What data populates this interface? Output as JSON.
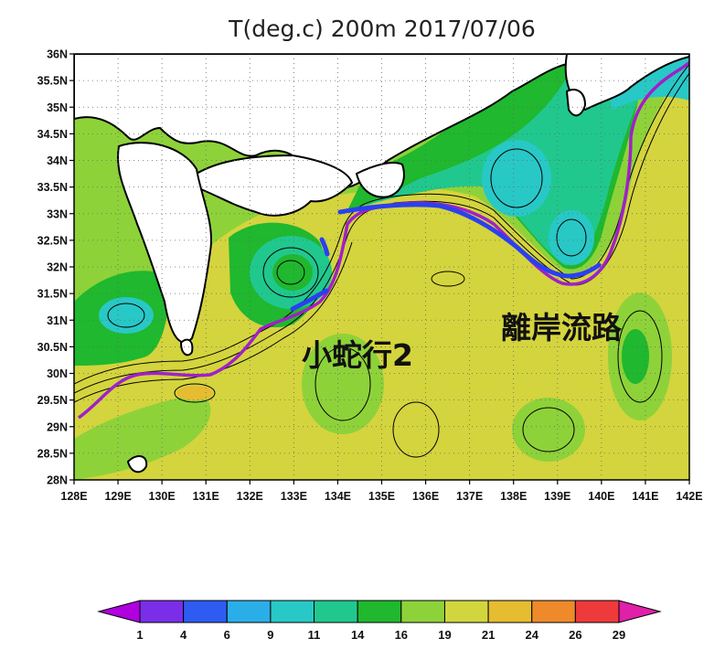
{
  "title": "T(deg.c) 200m 2017/07/06",
  "map": {
    "lon_range": [
      128,
      142
    ],
    "lat_range": [
      28,
      36
    ],
    "lon_ticks": [
      "128E",
      "129E",
      "130E",
      "131E",
      "132E",
      "133E",
      "134E",
      "135E",
      "136E",
      "137E",
      "138E",
      "139E",
      "140E",
      "141E",
      "142E"
    ],
    "lat_ticks": [
      "36N",
      "35.5N",
      "35N",
      "34.5N",
      "34N",
      "33.5N",
      "33N",
      "32.5N",
      "32N",
      "31.5N",
      "31N",
      "30.5N",
      "30N",
      "29.5N",
      "29N",
      "28.5N",
      "28N"
    ],
    "grid": "dotted",
    "field": "temperature at 200 m depth (deg C), filled contours with black contour lines",
    "land_color": "#ffffff",
    "kuroshio_path_color": "#a020c8",
    "observed_path_color": "#2040ff"
  },
  "annotations": {
    "meander_label": "小蛇行2",
    "offshore_path_label": "離岸流路"
  },
  "colorbar": {
    "labels": [
      "1",
      "4",
      "6",
      "9",
      "11",
      "14",
      "16",
      "19",
      "21",
      "24",
      "26",
      "29"
    ],
    "colors": [
      "#b000e0",
      "#7a2ee8",
      "#2e5cf2",
      "#2aaee8",
      "#28c8c6",
      "#20c88e",
      "#1fb82e",
      "#8ed23a",
      "#d2d63e",
      "#e6bc30",
      "#ee8a2a",
      "#ee3a3a",
      "#e020a8"
    ]
  }
}
